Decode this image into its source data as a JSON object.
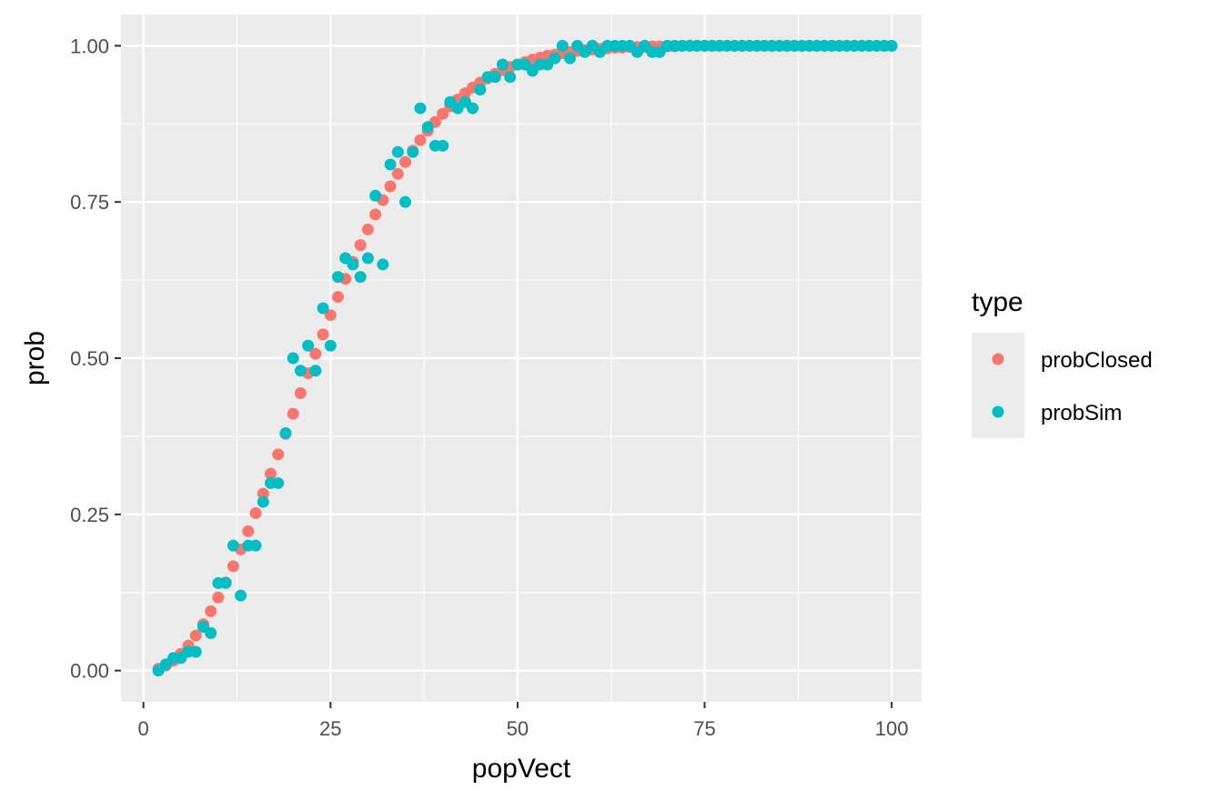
{
  "chart_data": {
    "type": "scatter",
    "xlabel": "popVect",
    "ylabel": "prob",
    "xlim": [
      -3,
      104
    ],
    "ylim": [
      -0.05,
      1.05
    ],
    "x_ticks": [
      0,
      25,
      50,
      75,
      100
    ],
    "x_tick_labels": [
      "0",
      "25",
      "50",
      "75",
      "100"
    ],
    "y_ticks": [
      0,
      0.25,
      0.5,
      0.75,
      1.0
    ],
    "y_tick_labels": [
      "0.00",
      "0.25",
      "0.50",
      "0.75",
      "1.00"
    ],
    "grid": true,
    "legend": {
      "title": "type",
      "position": "right",
      "entries": [
        "probClosed",
        "probSim"
      ]
    },
    "colors": {
      "panel_background": "#EBEBEB",
      "grid": "#FFFFFF",
      "probClosed": "#F8766D",
      "probSim": "#00BFC4"
    },
    "series": [
      {
        "name": "probClosed",
        "x": [
          2,
          3,
          4,
          5,
          6,
          7,
          8,
          9,
          10,
          11,
          12,
          13,
          14,
          15,
          16,
          17,
          18,
          19,
          20,
          21,
          22,
          23,
          24,
          25,
          26,
          27,
          28,
          29,
          30,
          31,
          32,
          33,
          34,
          35,
          36,
          37,
          38,
          39,
          40,
          41,
          42,
          43,
          44,
          45,
          46,
          47,
          48,
          49,
          50,
          51,
          52,
          53,
          54,
          55,
          56,
          57,
          58,
          59,
          60,
          61,
          62,
          63,
          64,
          65,
          66,
          67,
          68,
          69,
          70,
          71,
          72,
          73,
          74,
          75,
          76,
          77,
          78,
          79,
          80,
          81,
          82,
          83,
          84,
          85,
          86,
          87,
          88,
          89,
          90,
          91,
          92,
          93,
          94,
          95,
          96,
          97,
          98,
          99,
          100
        ],
        "y": [
          0.003,
          0.008,
          0.016,
          0.027,
          0.04,
          0.056,
          0.074,
          0.095,
          0.117,
          0.141,
          0.167,
          0.194,
          0.223,
          0.252,
          0.283,
          0.315,
          0.346,
          0.379,
          0.411,
          0.444,
          0.476,
          0.507,
          0.538,
          0.569,
          0.598,
          0.627,
          0.654,
          0.681,
          0.706,
          0.73,
          0.753,
          0.775,
          0.795,
          0.814,
          0.832,
          0.849,
          0.864,
          0.878,
          0.891,
          0.903,
          0.914,
          0.924,
          0.933,
          0.941,
          0.948,
          0.955,
          0.961,
          0.966,
          0.97,
          0.974,
          0.978,
          0.981,
          0.984,
          0.986,
          0.988,
          0.99,
          0.992,
          0.993,
          0.994,
          0.995,
          0.996,
          0.997,
          0.997,
          0.998,
          0.998,
          0.998,
          0.999,
          0.999,
          0.999,
          0.999,
          1,
          1,
          1,
          1,
          1,
          1,
          1,
          1,
          1,
          1,
          1,
          1,
          1,
          1,
          1,
          1,
          1,
          1,
          1,
          1,
          1,
          1,
          1,
          1,
          1,
          1,
          1,
          1,
          1
        ]
      },
      {
        "name": "probSim",
        "x": [
          2,
          3,
          4,
          5,
          6,
          7,
          8,
          9,
          10,
          11,
          12,
          13,
          14,
          15,
          16,
          17,
          18,
          19,
          20,
          21,
          22,
          23,
          24,
          25,
          26,
          27,
          28,
          29,
          30,
          31,
          32,
          33,
          34,
          35,
          36,
          37,
          38,
          39,
          40,
          41,
          42,
          43,
          44,
          45,
          46,
          47,
          48,
          49,
          50,
          51,
          52,
          53,
          54,
          55,
          56,
          57,
          58,
          59,
          60,
          61,
          62,
          63,
          64,
          65,
          66,
          67,
          68,
          69,
          70,
          71,
          72,
          73,
          74,
          75,
          76,
          77,
          78,
          79,
          80,
          81,
          82,
          83,
          84,
          85,
          86,
          87,
          88,
          89,
          90,
          91,
          92,
          93,
          94,
          95,
          96,
          97,
          98,
          99,
          100
        ],
        "y": [
          0,
          0.01,
          0.02,
          0.02,
          0.03,
          0.03,
          0.07,
          0.06,
          0.14,
          0.14,
          0.2,
          0.12,
          0.2,
          0.2,
          0.27,
          0.3,
          0.3,
          0.38,
          0.5,
          0.48,
          0.52,
          0.48,
          0.58,
          0.52,
          0.63,
          0.66,
          0.65,
          0.63,
          0.66,
          0.76,
          0.65,
          0.81,
          0.83,
          0.75,
          0.83,
          0.9,
          0.87,
          0.84,
          0.84,
          0.91,
          0.9,
          0.91,
          0.9,
          0.93,
          0.95,
          0.95,
          0.97,
          0.95,
          0.97,
          0.97,
          0.96,
          0.97,
          0.97,
          0.98,
          1,
          0.98,
          1,
          0.99,
          1,
          0.99,
          1,
          1,
          1,
          1,
          0.99,
          1,
          0.99,
          0.99,
          1,
          1,
          1,
          1,
          1,
          1,
          1,
          1,
          1,
          1,
          1,
          1,
          1,
          1,
          1,
          1,
          1,
          1,
          1,
          1,
          1,
          1,
          1,
          1,
          1,
          1,
          1,
          1,
          1,
          1,
          1
        ]
      }
    ]
  }
}
